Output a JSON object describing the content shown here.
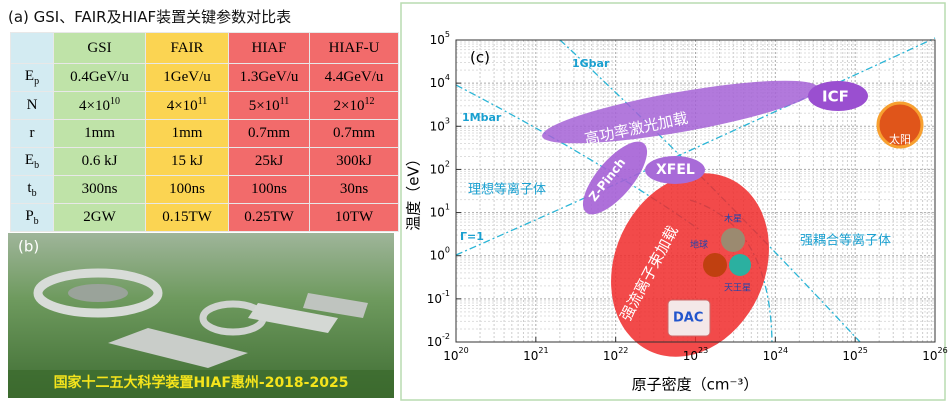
{
  "panel_a": {
    "title": "(a) GSI、FAIR及HIAF装置关键参数对比表",
    "table": {
      "header": [
        "GSI",
        "FAIR",
        "HIAF",
        "HIAF-U"
      ],
      "rows": [
        {
          "label": {
            "symbol": "E",
            "subscript": "p"
          },
          "cells": [
            "0.4GeV/u",
            "1GeV/u",
            "1.3GeV/u",
            "4.4GeV/u"
          ]
        },
        {
          "label": {
            "symbol": "N"
          },
          "cells": [
            {
              "mantissa": "4×10",
              "exponent": "10"
            },
            {
              "mantissa": "4×10",
              "exponent": "11"
            },
            {
              "mantissa": "5×10",
              "exponent": "11"
            },
            {
              "mantissa": "2×10",
              "exponent": "12"
            }
          ]
        },
        {
          "label": {
            "symbol": "r"
          },
          "cells": [
            "1mm",
            "1mm",
            "0.7mm",
            "0.7mm"
          ]
        },
        {
          "label": {
            "symbol": "E",
            "subscript": "b"
          },
          "cells": [
            "0.6 kJ",
            "15 kJ",
            "25kJ",
            "300kJ"
          ]
        },
        {
          "label": {
            "symbol": "t",
            "subscript": "b"
          },
          "cells": [
            "300ns",
            "100ns",
            "100ns",
            "30ns"
          ]
        },
        {
          "label": {
            "symbol": "P",
            "subscript": "b"
          },
          "cells": [
            "2GW",
            "0.15TW",
            "0.25TW",
            "10TW"
          ]
        }
      ]
    }
  },
  "panel_b": {
    "label": "(b)",
    "caption": "国家十二五大科学装置HIAF惠州-2018-2025"
  },
  "chart_data": {
    "type": "phase",
    "panel_label": "(c)",
    "x_label": "原子密度（cm⁻³）",
    "y_label": "温度（eV）",
    "xscale": "log",
    "yscale": "log",
    "grid": true,
    "xlim": [
      1e+20,
      1e+26
    ],
    "ylim": [
      0.01,
      100000
    ],
    "xticks": [
      {
        "value": 1e+20,
        "label": {
          "base": "10",
          "exponent": "20"
        }
      },
      {
        "value": 1e+21,
        "label": {
          "base": "10",
          "exponent": "21"
        }
      },
      {
        "value": 1e+22,
        "label": {
          "base": "10",
          "exponent": "22"
        }
      },
      {
        "value": 1e+23,
        "label": {
          "base": "10",
          "exponent": "23"
        }
      },
      {
        "value": 1e+24,
        "label": {
          "base": "10",
          "exponent": "24"
        }
      },
      {
        "value": 1e+25,
        "label": {
          "base": "10",
          "exponent": "25"
        }
      },
      {
        "value": 1e+26,
        "label": {
          "base": "10",
          "exponent": "26"
        }
      }
    ],
    "yticks": [
      {
        "value": 0.01,
        "label": {
          "base": "10",
          "exponent": "-2"
        }
      },
      {
        "value": 0.1,
        "label": {
          "base": "10",
          "exponent": "-1"
        }
      },
      {
        "value": 1,
        "label": {
          "base": "10",
          "exponent": "0"
        }
      },
      {
        "value": 10,
        "label": {
          "base": "10",
          "exponent": "1"
        }
      },
      {
        "value": 100,
        "label": {
          "base": "10",
          "exponent": "2"
        }
      },
      {
        "value": 1000,
        "label": {
          "base": "10",
          "exponent": "3"
        }
      },
      {
        "value": 10000,
        "label": {
          "base": "10",
          "exponent": "4"
        }
      },
      {
        "value": 100000,
        "label": {
          "base": "10",
          "exponent": "5"
        }
      }
    ],
    "annotations": [
      "1Gbar",
      "1Mbar",
      "理想等离子体",
      "Γ=1",
      "强耦合等离子体",
      "高功率激光加载",
      "ICF",
      "Z-Pinch",
      "XFEL",
      "强流离子束加载",
      "木星",
      "地球",
      "天王星",
      "DAC",
      "太阳"
    ]
  }
}
